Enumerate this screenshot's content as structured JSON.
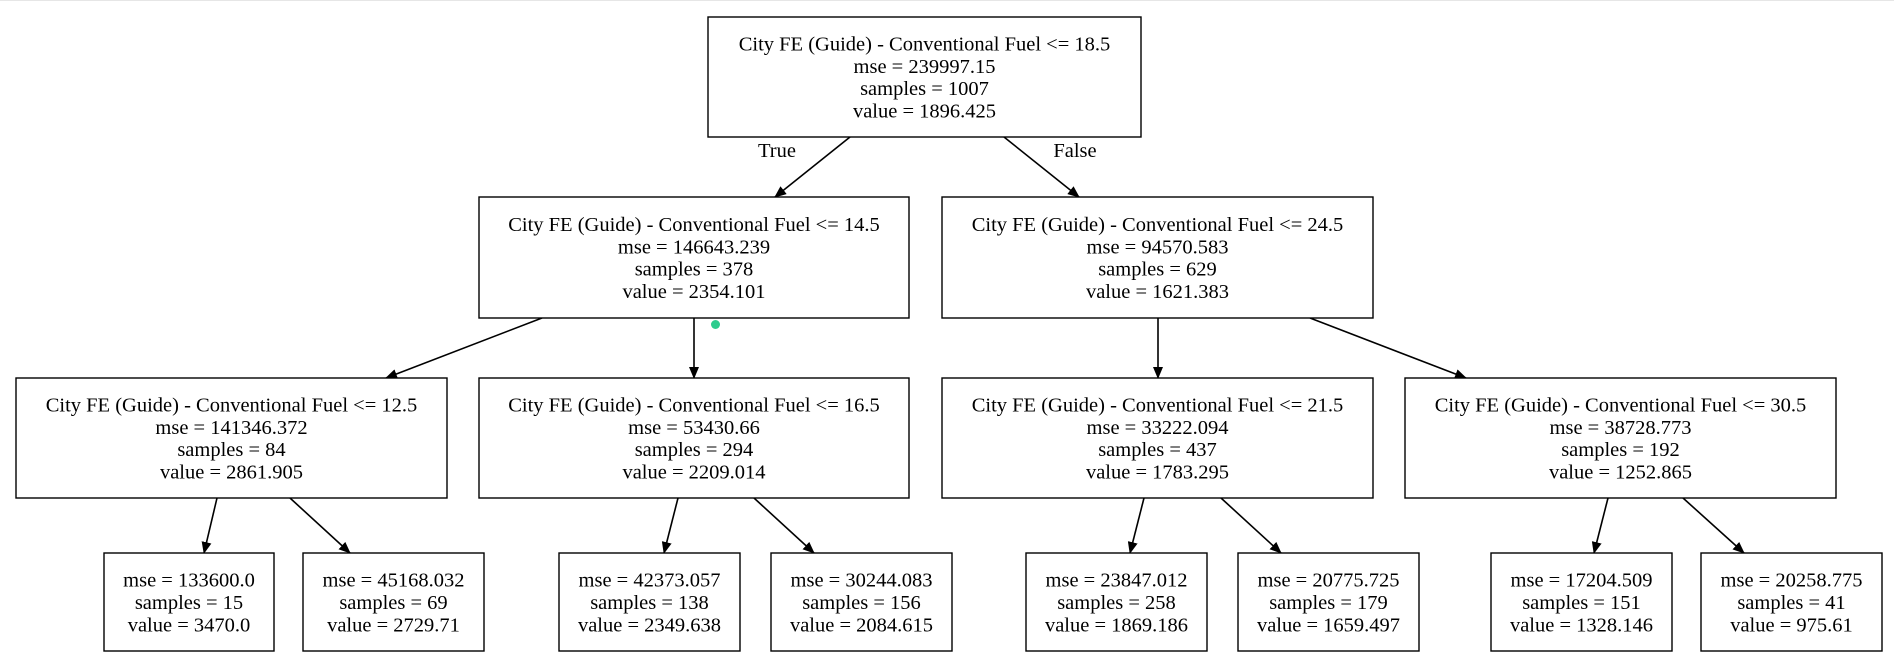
{
  "nodes": [
    {
      "id": 0,
      "lines": [
        "City FE (Guide) - Conventional Fuel <= 18.5",
        "mse = 239997.15",
        "samples = 1007",
        "value = 1896.425"
      ]
    },
    {
      "id": 1,
      "lines": [
        "City FE (Guide) - Conventional Fuel <= 14.5",
        "mse = 146643.239",
        "samples = 378",
        "value = 2354.101"
      ]
    },
    {
      "id": 2,
      "lines": [
        "City FE (Guide) - Conventional Fuel <= 24.5",
        "mse = 94570.583",
        "samples = 629",
        "value = 1621.383"
      ]
    },
    {
      "id": 3,
      "lines": [
        "City FE (Guide) - Conventional Fuel <= 12.5",
        "mse = 141346.372",
        "samples = 84",
        "value = 2861.905"
      ]
    },
    {
      "id": 4,
      "lines": [
        "City FE (Guide) - Conventional Fuel <= 16.5",
        "mse = 53430.66",
        "samples = 294",
        "value = 2209.014"
      ]
    },
    {
      "id": 5,
      "lines": [
        "City FE (Guide) - Conventional Fuel <= 21.5",
        "mse = 33222.094",
        "samples = 437",
        "value = 1783.295"
      ]
    },
    {
      "id": 6,
      "lines": [
        "City FE (Guide) - Conventional Fuel <= 30.5",
        "mse = 38728.773",
        "samples = 192",
        "value = 1252.865"
      ]
    },
    {
      "id": 7,
      "lines": [
        "mse = 133600.0",
        "samples = 15",
        "value = 3470.0"
      ]
    },
    {
      "id": 8,
      "lines": [
        "mse = 45168.032",
        "samples = 69",
        "value = 2729.71"
      ]
    },
    {
      "id": 9,
      "lines": [
        "mse = 42373.057",
        "samples = 138",
        "value = 2349.638"
      ]
    },
    {
      "id": 10,
      "lines": [
        "mse = 30244.083",
        "samples = 156",
        "value = 2084.615"
      ]
    },
    {
      "id": 11,
      "lines": [
        "mse = 23847.012",
        "samples = 258",
        "value = 1869.186"
      ]
    },
    {
      "id": 12,
      "lines": [
        "mse = 20775.725",
        "samples = 179",
        "value = 1659.497"
      ]
    },
    {
      "id": 13,
      "lines": [
        "mse = 17204.509",
        "samples = 151",
        "value = 1328.146"
      ]
    },
    {
      "id": 14,
      "lines": [
        "mse = 20258.775",
        "samples = 41",
        "value = 975.61"
      ]
    }
  ],
  "edges": [
    {
      "from": 0,
      "to": 1,
      "label": "True"
    },
    {
      "from": 0,
      "to": 2,
      "label": "False"
    },
    {
      "from": 1,
      "to": 3
    },
    {
      "from": 1,
      "to": 4
    },
    {
      "from": 2,
      "to": 5
    },
    {
      "from": 2,
      "to": 6
    },
    {
      "from": 3,
      "to": 7
    },
    {
      "from": 3,
      "to": 8
    },
    {
      "from": 4,
      "to": 9
    },
    {
      "from": 4,
      "to": 10
    },
    {
      "from": 5,
      "to": 11
    },
    {
      "from": 5,
      "to": 12
    },
    {
      "from": 6,
      "to": 13
    },
    {
      "from": 6,
      "to": 14
    }
  ],
  "colors": {
    "stroke": "#000000",
    "fill": "#ffffff",
    "marker": "#2ecc8e"
  }
}
